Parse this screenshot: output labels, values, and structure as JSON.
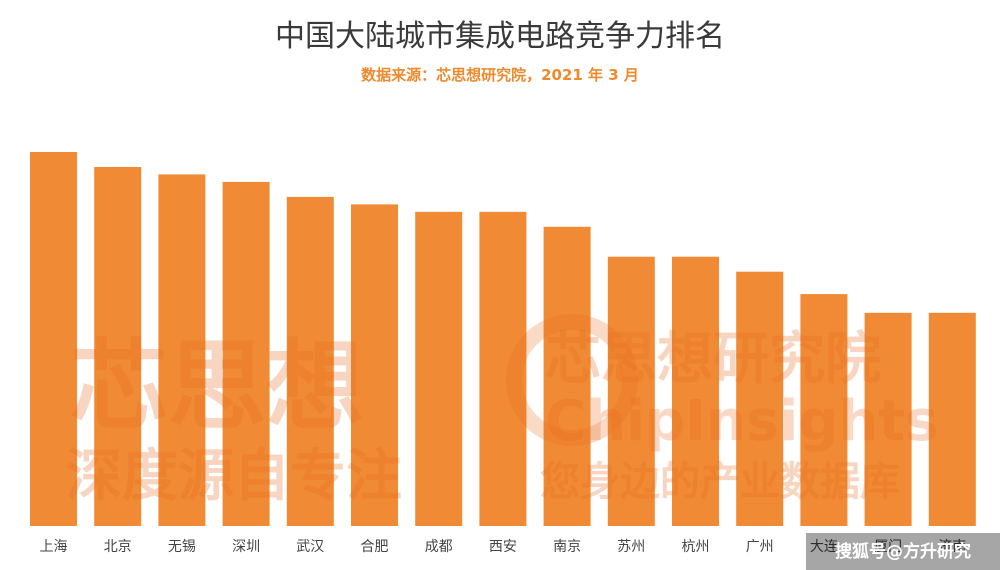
{
  "chart_data": {
    "type": "bar",
    "title": "中国大陆城市集成电路竞争力排名",
    "subtitle": "数据来源：芯思想研究院，2021 年 3 月",
    "categories": [
      "上海",
      "北京",
      "无锡",
      "深圳",
      "武汉",
      "合肥",
      "成都",
      "西安",
      "南京",
      "苏州",
      "杭州",
      "广州",
      "大连",
      "厦门",
      "济南"
    ],
    "values": [
      100,
      96,
      94,
      92,
      88,
      86,
      84,
      84,
      80,
      72,
      72,
      68,
      62,
      57,
      57
    ],
    "ylim": [
      0,
      100
    ],
    "xlabel": "",
    "ylabel": "",
    "grid": false,
    "legend": "none",
    "bar_color": "#f08a34"
  },
  "watermark": {
    "brand_cn": "芯思想",
    "slogan_cn": "深度源自专注",
    "institute_cn": "芯思想研究院",
    "brand_en": "ChipInsights",
    "tagline_cn": "您身边的产业数据库"
  },
  "credit": "搜狐号@方升研究"
}
